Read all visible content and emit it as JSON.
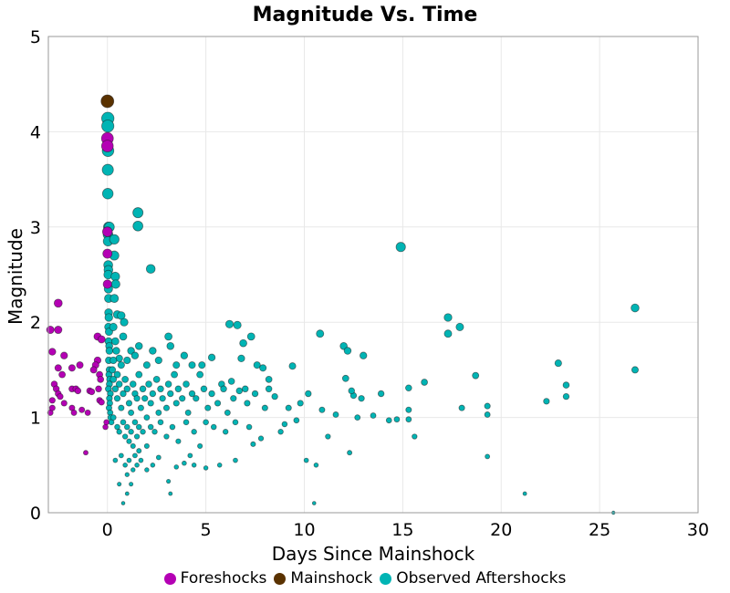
{
  "chart_data": {
    "type": "scatter",
    "title": "Magnitude Vs. Time",
    "xlabel": "Days Since Mainshock",
    "ylabel": "Magnitude",
    "xlim": [
      -3,
      30
    ],
    "ylim": [
      0,
      5
    ],
    "xticks": [
      0,
      5,
      10,
      15,
      20,
      25,
      30
    ],
    "yticks": [
      0,
      1,
      2,
      3,
      4,
      5
    ],
    "grid": true,
    "legend_position": "bottom",
    "marker_size_scales_with": "magnitude",
    "series": [
      {
        "name": "Observed Aftershocks",
        "color": "#00b4b4",
        "points": [
          [
            0.02,
            4.14
          ],
          [
            0.02,
            4.06
          ],
          [
            0.03,
            3.8
          ],
          [
            0.02,
            3.6
          ],
          [
            0.02,
            3.35
          ],
          [
            0.05,
            3.0
          ],
          [
            0.1,
            3.0
          ],
          [
            0.03,
            2.92
          ],
          [
            0.03,
            2.85
          ],
          [
            0.04,
            2.6
          ],
          [
            0.05,
            2.55
          ],
          [
            0.04,
            2.5
          ],
          [
            0.05,
            2.35
          ],
          [
            0.06,
            2.25
          ],
          [
            0.06,
            2.1
          ],
          [
            0.07,
            2.05
          ],
          [
            0.05,
            1.95
          ],
          [
            0.08,
            1.9
          ],
          [
            0.06,
            1.8
          ],
          [
            0.09,
            1.75
          ],
          [
            0.1,
            1.7
          ],
          [
            0.07,
            1.6
          ],
          [
            0.1,
            1.5
          ],
          [
            0.08,
            1.45
          ],
          [
            0.12,
            1.4
          ],
          [
            0.1,
            1.35
          ],
          [
            0.05,
            1.3
          ],
          [
            0.15,
            1.25
          ],
          [
            0.1,
            1.2
          ],
          [
            0.12,
            1.15
          ],
          [
            0.08,
            1.1
          ],
          [
            0.14,
            1.05
          ],
          [
            0.16,
            1.0
          ],
          [
            0.2,
            0.95
          ],
          [
            0.35,
            2.87
          ],
          [
            0.35,
            2.7
          ],
          [
            0.4,
            2.48
          ],
          [
            0.42,
            2.4
          ],
          [
            0.35,
            2.25
          ],
          [
            0.5,
            2.08
          ],
          [
            0.7,
            2.07
          ],
          [
            0.85,
            2.0
          ],
          [
            0.8,
            1.85
          ],
          [
            0.3,
            1.95
          ],
          [
            0.4,
            1.8
          ],
          [
            0.45,
            1.7
          ],
          [
            0.6,
            1.62
          ],
          [
            0.7,
            1.55
          ],
          [
            0.3,
            1.6
          ],
          [
            0.25,
            1.5
          ],
          [
            0.5,
            1.45
          ],
          [
            1.55,
            3.15
          ],
          [
            1.55,
            3.01
          ],
          [
            2.2,
            2.56
          ],
          [
            6.2,
            1.98
          ],
          [
            6.6,
            1.97
          ],
          [
            7.3,
            1.85
          ],
          [
            6.9,
            1.78
          ],
          [
            10.8,
            1.88
          ],
          [
            12.0,
            1.75
          ],
          [
            12.2,
            1.7
          ],
          [
            13.0,
            1.65
          ],
          [
            14.9,
            2.79
          ],
          [
            17.3,
            2.05
          ],
          [
            17.3,
            1.88
          ],
          [
            17.9,
            1.95
          ],
          [
            18.7,
            1.44
          ],
          [
            22.9,
            1.57
          ],
          [
            23.3,
            1.34
          ],
          [
            23.3,
            1.22
          ],
          [
            26.8,
            2.15
          ],
          [
            26.8,
            1.5
          ],
          [
            22.3,
            1.17
          ],
          [
            21.2,
            0.2
          ],
          [
            25.7,
            0.0
          ],
          [
            19.3,
            1.12
          ],
          [
            19.3,
            1.03
          ],
          [
            19.3,
            0.59
          ],
          [
            18.0,
            1.1
          ],
          [
            16.1,
            1.37
          ],
          [
            15.6,
            0.8
          ],
          [
            15.3,
            1.08
          ],
          [
            15.3,
            0.98
          ],
          [
            15.3,
            1.31
          ],
          [
            14.7,
            0.98
          ],
          [
            14.3,
            0.97
          ],
          [
            13.9,
            1.25
          ],
          [
            13.5,
            1.02
          ],
          [
            12.9,
            1.2
          ],
          [
            12.7,
            1.0
          ],
          [
            12.5,
            1.23
          ],
          [
            12.4,
            1.28
          ],
          [
            12.3,
            0.63
          ],
          [
            12.1,
            1.41
          ],
          [
            11.6,
            1.03
          ],
          [
            11.2,
            0.8
          ],
          [
            10.9,
            1.08
          ],
          [
            10.5,
            0.1
          ],
          [
            10.6,
            0.5
          ],
          [
            10.2,
            1.25
          ],
          [
            10.1,
            0.55
          ],
          [
            9.8,
            1.15
          ],
          [
            9.6,
            0.97
          ],
          [
            9.4,
            1.54
          ],
          [
            9.0,
            0.93
          ],
          [
            8.8,
            0.85
          ],
          [
            8.2,
            1.4
          ],
          [
            8.2,
            1.3
          ],
          [
            8.0,
            1.1
          ],
          [
            7.8,
            0.78
          ],
          [
            7.4,
            0.72
          ],
          [
            1.0,
            1.6
          ],
          [
            1.2,
            1.7
          ],
          [
            1.4,
            1.65
          ],
          [
            1.6,
            1.75
          ],
          [
            2.0,
            1.55
          ],
          [
            2.3,
            1.7
          ],
          [
            2.6,
            1.6
          ],
          [
            3.1,
            1.85
          ],
          [
            3.2,
            1.75
          ],
          [
            3.5,
            1.55
          ],
          [
            3.9,
            1.65
          ],
          [
            4.3,
            1.55
          ],
          [
            4.8,
            1.55
          ],
          [
            5.3,
            1.63
          ],
          [
            5.8,
            1.35
          ],
          [
            6.3,
            1.38
          ],
          [
            6.8,
            1.62
          ],
          [
            7.0,
            1.3
          ],
          [
            7.6,
            1.55
          ],
          [
            7.9,
            1.52
          ],
          [
            8.5,
            1.22
          ],
          [
            9.2,
            1.1
          ],
          [
            0.3,
            1.4
          ],
          [
            0.4,
            1.3
          ],
          [
            0.5,
            1.2
          ],
          [
            0.6,
            1.35
          ],
          [
            0.7,
            1.1
          ],
          [
            0.8,
            1.25
          ],
          [
            0.9,
            1.4
          ],
          [
            1.0,
            1.3
          ],
          [
            1.1,
            1.15
          ],
          [
            1.2,
            1.05
          ],
          [
            1.3,
            1.35
          ],
          [
            1.4,
            1.25
          ],
          [
            1.5,
            1.2
          ],
          [
            1.6,
            1.45
          ],
          [
            1.7,
            1.1
          ],
          [
            1.8,
            1.3
          ],
          [
            1.9,
            1.2
          ],
          [
            2.0,
            1.0
          ],
          [
            2.1,
            1.35
          ],
          [
            2.2,
            1.15
          ],
          [
            2.3,
            1.25
          ],
          [
            2.5,
            1.4
          ],
          [
            2.6,
            1.05
          ],
          [
            2.7,
            1.3
          ],
          [
            2.8,
            1.2
          ],
          [
            3.0,
            1.1
          ],
          [
            3.1,
            1.35
          ],
          [
            3.2,
            1.25
          ],
          [
            3.4,
            1.45
          ],
          [
            3.5,
            1.15
          ],
          [
            3.6,
            1.3
          ],
          [
            3.8,
            1.2
          ],
          [
            4.0,
            1.35
          ],
          [
            4.1,
            1.05
          ],
          [
            4.3,
            1.25
          ],
          [
            4.5,
            1.2
          ],
          [
            4.7,
            1.45
          ],
          [
            4.9,
            1.3
          ],
          [
            5.1,
            1.1
          ],
          [
            5.3,
            1.25
          ],
          [
            5.6,
            1.15
          ],
          [
            5.9,
            1.3
          ],
          [
            6.1,
            1.05
          ],
          [
            6.4,
            1.2
          ],
          [
            6.7,
            1.28
          ],
          [
            7.1,
            1.15
          ],
          [
            7.5,
            1.25
          ],
          [
            0.3,
            1.0
          ],
          [
            0.5,
            0.9
          ],
          [
            0.6,
            0.85
          ],
          [
            0.8,
            0.95
          ],
          [
            0.9,
            0.8
          ],
          [
            1.0,
            0.9
          ],
          [
            1.1,
            0.75
          ],
          [
            1.2,
            0.85
          ],
          [
            1.3,
            0.7
          ],
          [
            1.4,
            0.95
          ],
          [
            1.5,
            0.8
          ],
          [
            1.6,
            0.9
          ],
          [
            1.8,
            0.85
          ],
          [
            2.0,
            0.7
          ],
          [
            2.2,
            0.9
          ],
          [
            2.4,
            0.85
          ],
          [
            2.7,
            0.95
          ],
          [
            3.0,
            0.8
          ],
          [
            3.3,
            0.9
          ],
          [
            3.6,
            0.75
          ],
          [
            4.0,
            0.95
          ],
          [
            4.4,
            0.85
          ],
          [
            4.7,
            0.7
          ],
          [
            5.0,
            0.95
          ],
          [
            5.4,
            0.9
          ],
          [
            6.0,
            0.85
          ],
          [
            6.5,
            0.95
          ],
          [
            7.2,
            0.9
          ],
          [
            0.4,
            0.55
          ],
          [
            0.7,
            0.6
          ],
          [
            0.9,
            0.5
          ],
          [
            1.0,
            0.4
          ],
          [
            1.1,
            0.55
          ],
          [
            1.2,
            0.3
          ],
          [
            1.3,
            0.45
          ],
          [
            1.4,
            0.6
          ],
          [
            1.5,
            0.5
          ],
          [
            1.7,
            0.55
          ],
          [
            2.0,
            0.45
          ],
          [
            2.3,
            0.5
          ],
          [
            2.6,
            0.58
          ],
          [
            3.1,
            0.33
          ],
          [
            3.2,
            0.2
          ],
          [
            3.5,
            0.48
          ],
          [
            3.9,
            0.52
          ],
          [
            4.2,
            0.6
          ],
          [
            4.4,
            0.5
          ],
          [
            5.0,
            0.47
          ],
          [
            5.7,
            0.5
          ],
          [
            6.5,
            0.55
          ],
          [
            0.8,
            0.1
          ],
          [
            1.0,
            0.2
          ],
          [
            0.6,
            0.3
          ],
          [
            1.6,
            0.65
          ]
        ]
      },
      {
        "name": "Foreshocks",
        "color": "#b400b4",
        "points": [
          [
            -2.9,
            1.92
          ],
          [
            -2.5,
            2.2
          ],
          [
            -2.5,
            1.92
          ],
          [
            -2.8,
            1.69
          ],
          [
            -2.2,
            1.65
          ],
          [
            -2.5,
            1.52
          ],
          [
            -2.3,
            1.45
          ],
          [
            -1.8,
            1.52
          ],
          [
            -1.4,
            1.55
          ],
          [
            -0.5,
            1.85
          ],
          [
            -0.3,
            1.82
          ],
          [
            -0.5,
            1.6
          ],
          [
            -0.6,
            1.55
          ],
          [
            -0.7,
            1.5
          ],
          [
            -2.7,
            1.35
          ],
          [
            -2.6,
            1.3
          ],
          [
            -2.5,
            1.25
          ],
          [
            -2.4,
            1.22
          ],
          [
            -2.8,
            1.18
          ],
          [
            -2.2,
            1.15
          ],
          [
            -1.8,
            1.3
          ],
          [
            -1.6,
            1.3
          ],
          [
            -1.5,
            1.28
          ],
          [
            -0.9,
            1.28
          ],
          [
            -0.8,
            1.27
          ],
          [
            -0.45,
            1.3
          ],
          [
            -0.4,
            1.45
          ],
          [
            -0.35,
            1.4
          ],
          [
            -2.9,
            1.05
          ],
          [
            -2.8,
            1.1
          ],
          [
            -1.8,
            1.1
          ],
          [
            -1.7,
            1.05
          ],
          [
            -1.3,
            1.08
          ],
          [
            -1.0,
            1.05
          ],
          [
            -0.4,
            1.18
          ],
          [
            -0.3,
            1.16
          ],
          [
            -1.1,
            0.63
          ],
          [
            -0.1,
            0.9
          ],
          [
            -0.05,
            0.95
          ],
          [
            0.0,
            3.93
          ],
          [
            0.0,
            3.85
          ],
          [
            0.0,
            2.95
          ],
          [
            0.0,
            2.72
          ],
          [
            0.0,
            2.4
          ]
        ]
      },
      {
        "name": "Mainshock",
        "color": "#5a3200",
        "points": [
          [
            0.0,
            4.32
          ]
        ]
      }
    ]
  },
  "legend": [
    {
      "label": "Foreshocks",
      "color": "#b400b4"
    },
    {
      "label": "Mainshock",
      "color": "#5a3200"
    },
    {
      "label": "Observed Aftershocks",
      "color": "#00b4b4"
    }
  ]
}
